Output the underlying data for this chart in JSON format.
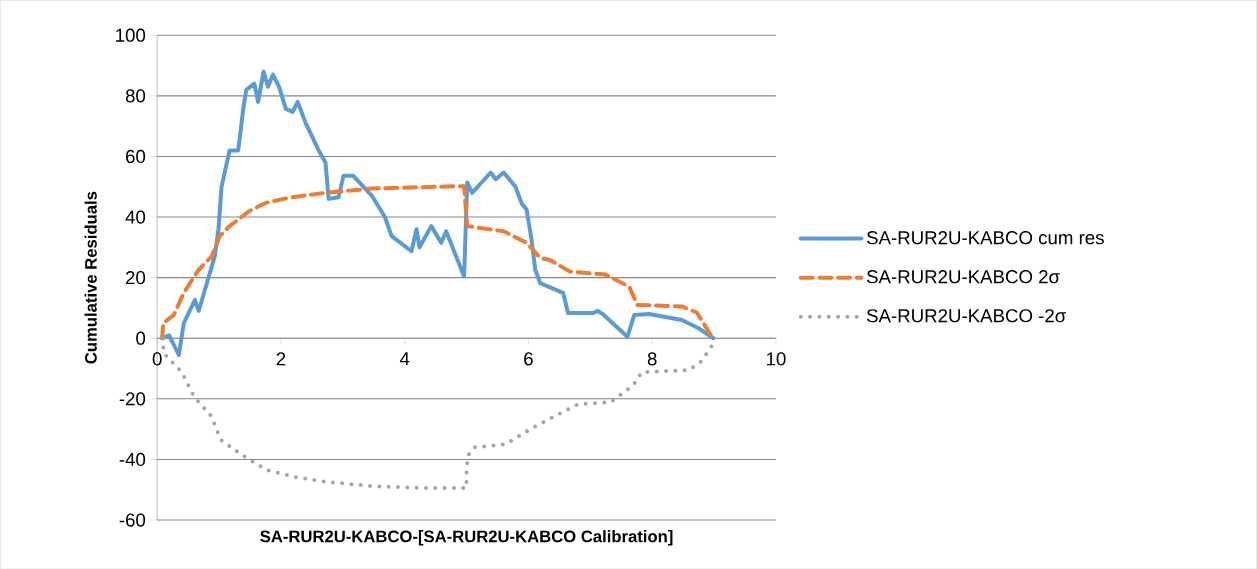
{
  "chart_data": {
    "type": "line",
    "xlabel": "SA-RUR2U-KABCO-[SA-RUR2U-KABCO Calibration]",
    "ylabel": "Cumulative Residuals",
    "xlim": [
      0,
      10
    ],
    "xticks": [
      0,
      2,
      4,
      6,
      8,
      10
    ],
    "ylim": [
      -60,
      100
    ],
    "yticks": [
      -60,
      -40,
      -20,
      0,
      20,
      40,
      60,
      80,
      100
    ],
    "grid": "y",
    "legend": "right",
    "marker": "none",
    "series": [
      {
        "name": "SA-RUR2U-KABCO cum res",
        "color": "#5b9bd5",
        "line_style": "solid",
        "x": [
          0.08,
          0.19,
          0.35,
          0.43,
          0.61,
          0.67,
          0.8,
          0.93,
          0.99,
          1.04,
          1.17,
          1.31,
          1.39,
          1.44,
          1.57,
          1.63,
          1.72,
          1.79,
          1.87,
          1.97,
          2.08,
          2.19,
          2.27,
          2.4,
          2.61,
          2.72,
          2.77,
          2.93,
          3.01,
          3.17,
          3.47,
          3.68,
          3.79,
          4.11,
          4.19,
          4.24,
          4.43,
          4.59,
          4.67,
          4.96,
          5.01,
          5.09,
          5.39,
          5.47,
          5.6,
          5.79,
          5.89,
          5.97,
          6.05,
          6.11,
          6.19,
          6.56,
          6.64,
          7.04,
          7.12,
          7.2,
          7.6,
          7.71,
          7.95,
          8.48,
          8.75,
          8.99
        ],
        "values": [
          0,
          1,
          -5.5,
          5,
          12.7,
          9,
          18,
          27,
          36,
          50,
          62,
          62,
          75.7,
          82,
          84,
          78,
          88,
          83,
          87,
          83,
          75.7,
          74.7,
          78,
          71,
          62,
          58,
          46,
          46.5,
          53.6,
          53.6,
          47,
          40,
          33.7,
          28.7,
          36,
          30,
          37,
          31.5,
          35.3,
          20.4,
          51.4,
          48,
          54.7,
          52.5,
          54.7,
          50,
          44.5,
          42.5,
          32.6,
          22.6,
          18.2,
          15,
          8.3,
          8.3,
          9,
          8,
          0.5,
          7.7,
          8,
          6,
          3.3,
          0
        ]
      },
      {
        "name": "SA-RUR2U-KABCO 2σ",
        "color": "#ed7d31",
        "line_style": "dashed",
        "x": [
          0.08,
          0.1,
          0.27,
          0.43,
          0.67,
          0.88,
          1.01,
          1.17,
          1.49,
          1.76,
          2.13,
          2.72,
          3.47,
          4.9,
          4.96,
          5.01,
          5.6,
          5.97,
          6.19,
          6.35,
          6.67,
          7.25,
          7.63,
          7.76,
          8.48,
          8.72,
          8.88,
          8.96
        ],
        "values": [
          0,
          5,
          7.7,
          15,
          22.6,
          27,
          33.7,
          37,
          42,
          44.7,
          46.4,
          48,
          49.4,
          50.2,
          50.2,
          37,
          35.3,
          31.5,
          26.5,
          25.8,
          22,
          21,
          17,
          11,
          10.5,
          8.5,
          3.3,
          0.5
        ]
      },
      {
        "name": "SA-RUR2U-KABCO -2σ",
        "color": "#a5a5a5",
        "line_style": "dotted",
        "x": [
          0.1,
          0.1,
          0.4,
          0.6,
          0.87,
          1.03,
          1.39,
          1.77,
          2.23,
          2.73,
          3.46,
          4.23,
          5.0,
          5.0,
          5.02,
          5.13,
          5.63,
          6.03,
          6.4,
          6.8,
          7.33,
          7.7,
          7.83,
          8.6,
          8.8,
          8.96,
          9.0
        ],
        "values": [
          0,
          -4.8,
          -11.3,
          -19.4,
          -25.6,
          -33.6,
          -38.8,
          -43.5,
          -45.8,
          -47.4,
          -48.8,
          -49.4,
          -49.4,
          -44.2,
          -38.8,
          -36,
          -35,
          -30,
          -26,
          -21.8,
          -21.1,
          -15.4,
          -11.2,
          -10.5,
          -7.5,
          -2.7,
          0
        ]
      }
    ]
  }
}
